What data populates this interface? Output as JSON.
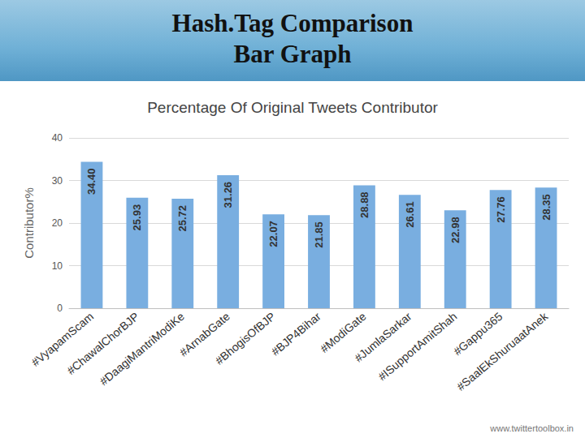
{
  "slide": {
    "title_lines": [
      "Hash.Tag Comparison",
      "Bar Graph"
    ],
    "source": "www.twittertoolbox.in"
  },
  "chart_data": {
    "type": "bar",
    "title": "Percentage Of Original Tweets Contributor",
    "y_label": "Contributor%",
    "categories": [
      "#VyapamScam",
      "#ChawalChorBJP",
      "#DaagiMantriModiKe",
      "#ArnabGate",
      "#BhogisOfBJP",
      "#BJP4Bihar",
      "#ModiGate",
      "#JumlaSarkar",
      "#ISupportAmitShah",
      "#Gappu365",
      "#SaalEkShuruaatAnek"
    ],
    "values": [
      34.4,
      25.93,
      25.72,
      31.26,
      22.07,
      21.85,
      28.88,
      26.61,
      22.98,
      27.76,
      28.35
    ],
    "value_labels": [
      "34.40",
      "25.93",
      "25.72",
      "31.26",
      "22.07",
      "21.85",
      "28.88",
      "26.61",
      "22.98",
      "27.76",
      "28.35"
    ],
    "color": "#79aee0",
    "ylim": [
      0,
      40
    ],
    "yticks": [
      0,
      10,
      20,
      30,
      40
    ],
    "grid": true,
    "data_labels": true
  }
}
